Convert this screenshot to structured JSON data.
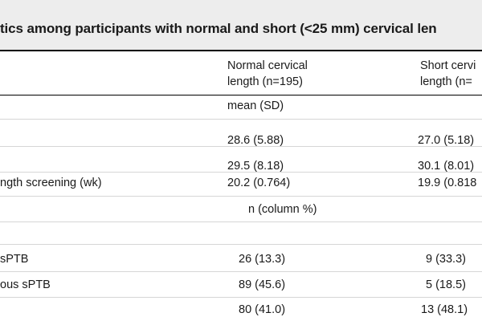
{
  "title": "tics among participants with normal and short (<25 mm) cervical len",
  "columns": {
    "normal_line1": "Normal cervical",
    "normal_line2": "length (n=195)",
    "short_line1": "Short cervi",
    "short_line2": "length (n="
  },
  "notes": {
    "mean_sd": "mean (SD)",
    "n_pct": "n (column %)"
  },
  "rows": [
    {
      "label": "",
      "normal": "28.6 (5.88)",
      "short": "27.0 (5.18)"
    },
    {
      "label": "",
      "normal": "29.5 (8.18)",
      "short": "30.1 (8.01)"
    },
    {
      "label": "ngth screening (wk)",
      "normal": "20.2 (0.764)",
      "short": "19.9 (0.818"
    },
    {
      "label": "sPTB",
      "normal": "26 (13.3)",
      "short": "9 (33.3)"
    },
    {
      "label": "ous sPTB",
      "normal": "89 (45.6)",
      "short": "5 (18.5)"
    },
    {
      "label": "",
      "normal": "80 (41.0)",
      "short": "13 (48.1)"
    }
  ]
}
